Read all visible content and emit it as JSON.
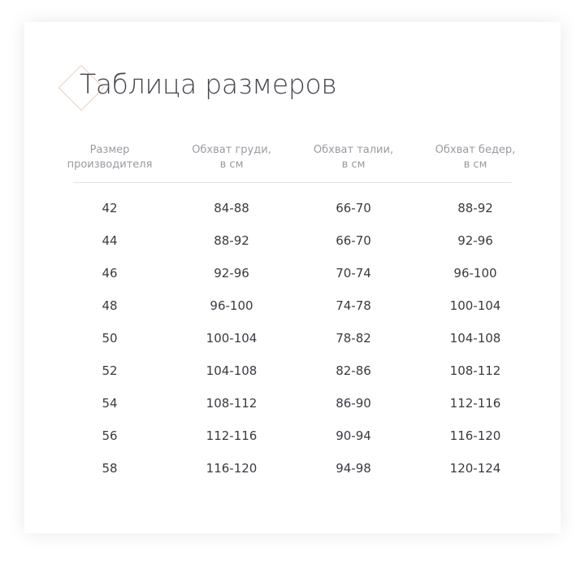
{
  "title": "Таблица размеров",
  "accent_color": "#e7cfc3",
  "headers": [
    "Размер\nпроизводителя",
    "Обхват груди,\nв см",
    "Обхват талии,\nв см",
    "Обхват бедер,\nв см"
  ],
  "rows": [
    [
      "42",
      "84-88",
      "66-70",
      "88-92"
    ],
    [
      "44",
      "88-92",
      "66-70",
      "92-96"
    ],
    [
      "46",
      "92-96",
      "70-74",
      "96-100"
    ],
    [
      "48",
      "96-100",
      "74-78",
      "100-104"
    ],
    [
      "50",
      "100-104",
      "78-82",
      "104-108"
    ],
    [
      "52",
      "104-108",
      "82-86",
      "108-112"
    ],
    [
      "54",
      "108-112",
      "86-90",
      "112-116"
    ],
    [
      "56",
      "112-116",
      "90-94",
      "116-120"
    ],
    [
      "58",
      "116-120",
      "94-98",
      "120-124"
    ]
  ]
}
